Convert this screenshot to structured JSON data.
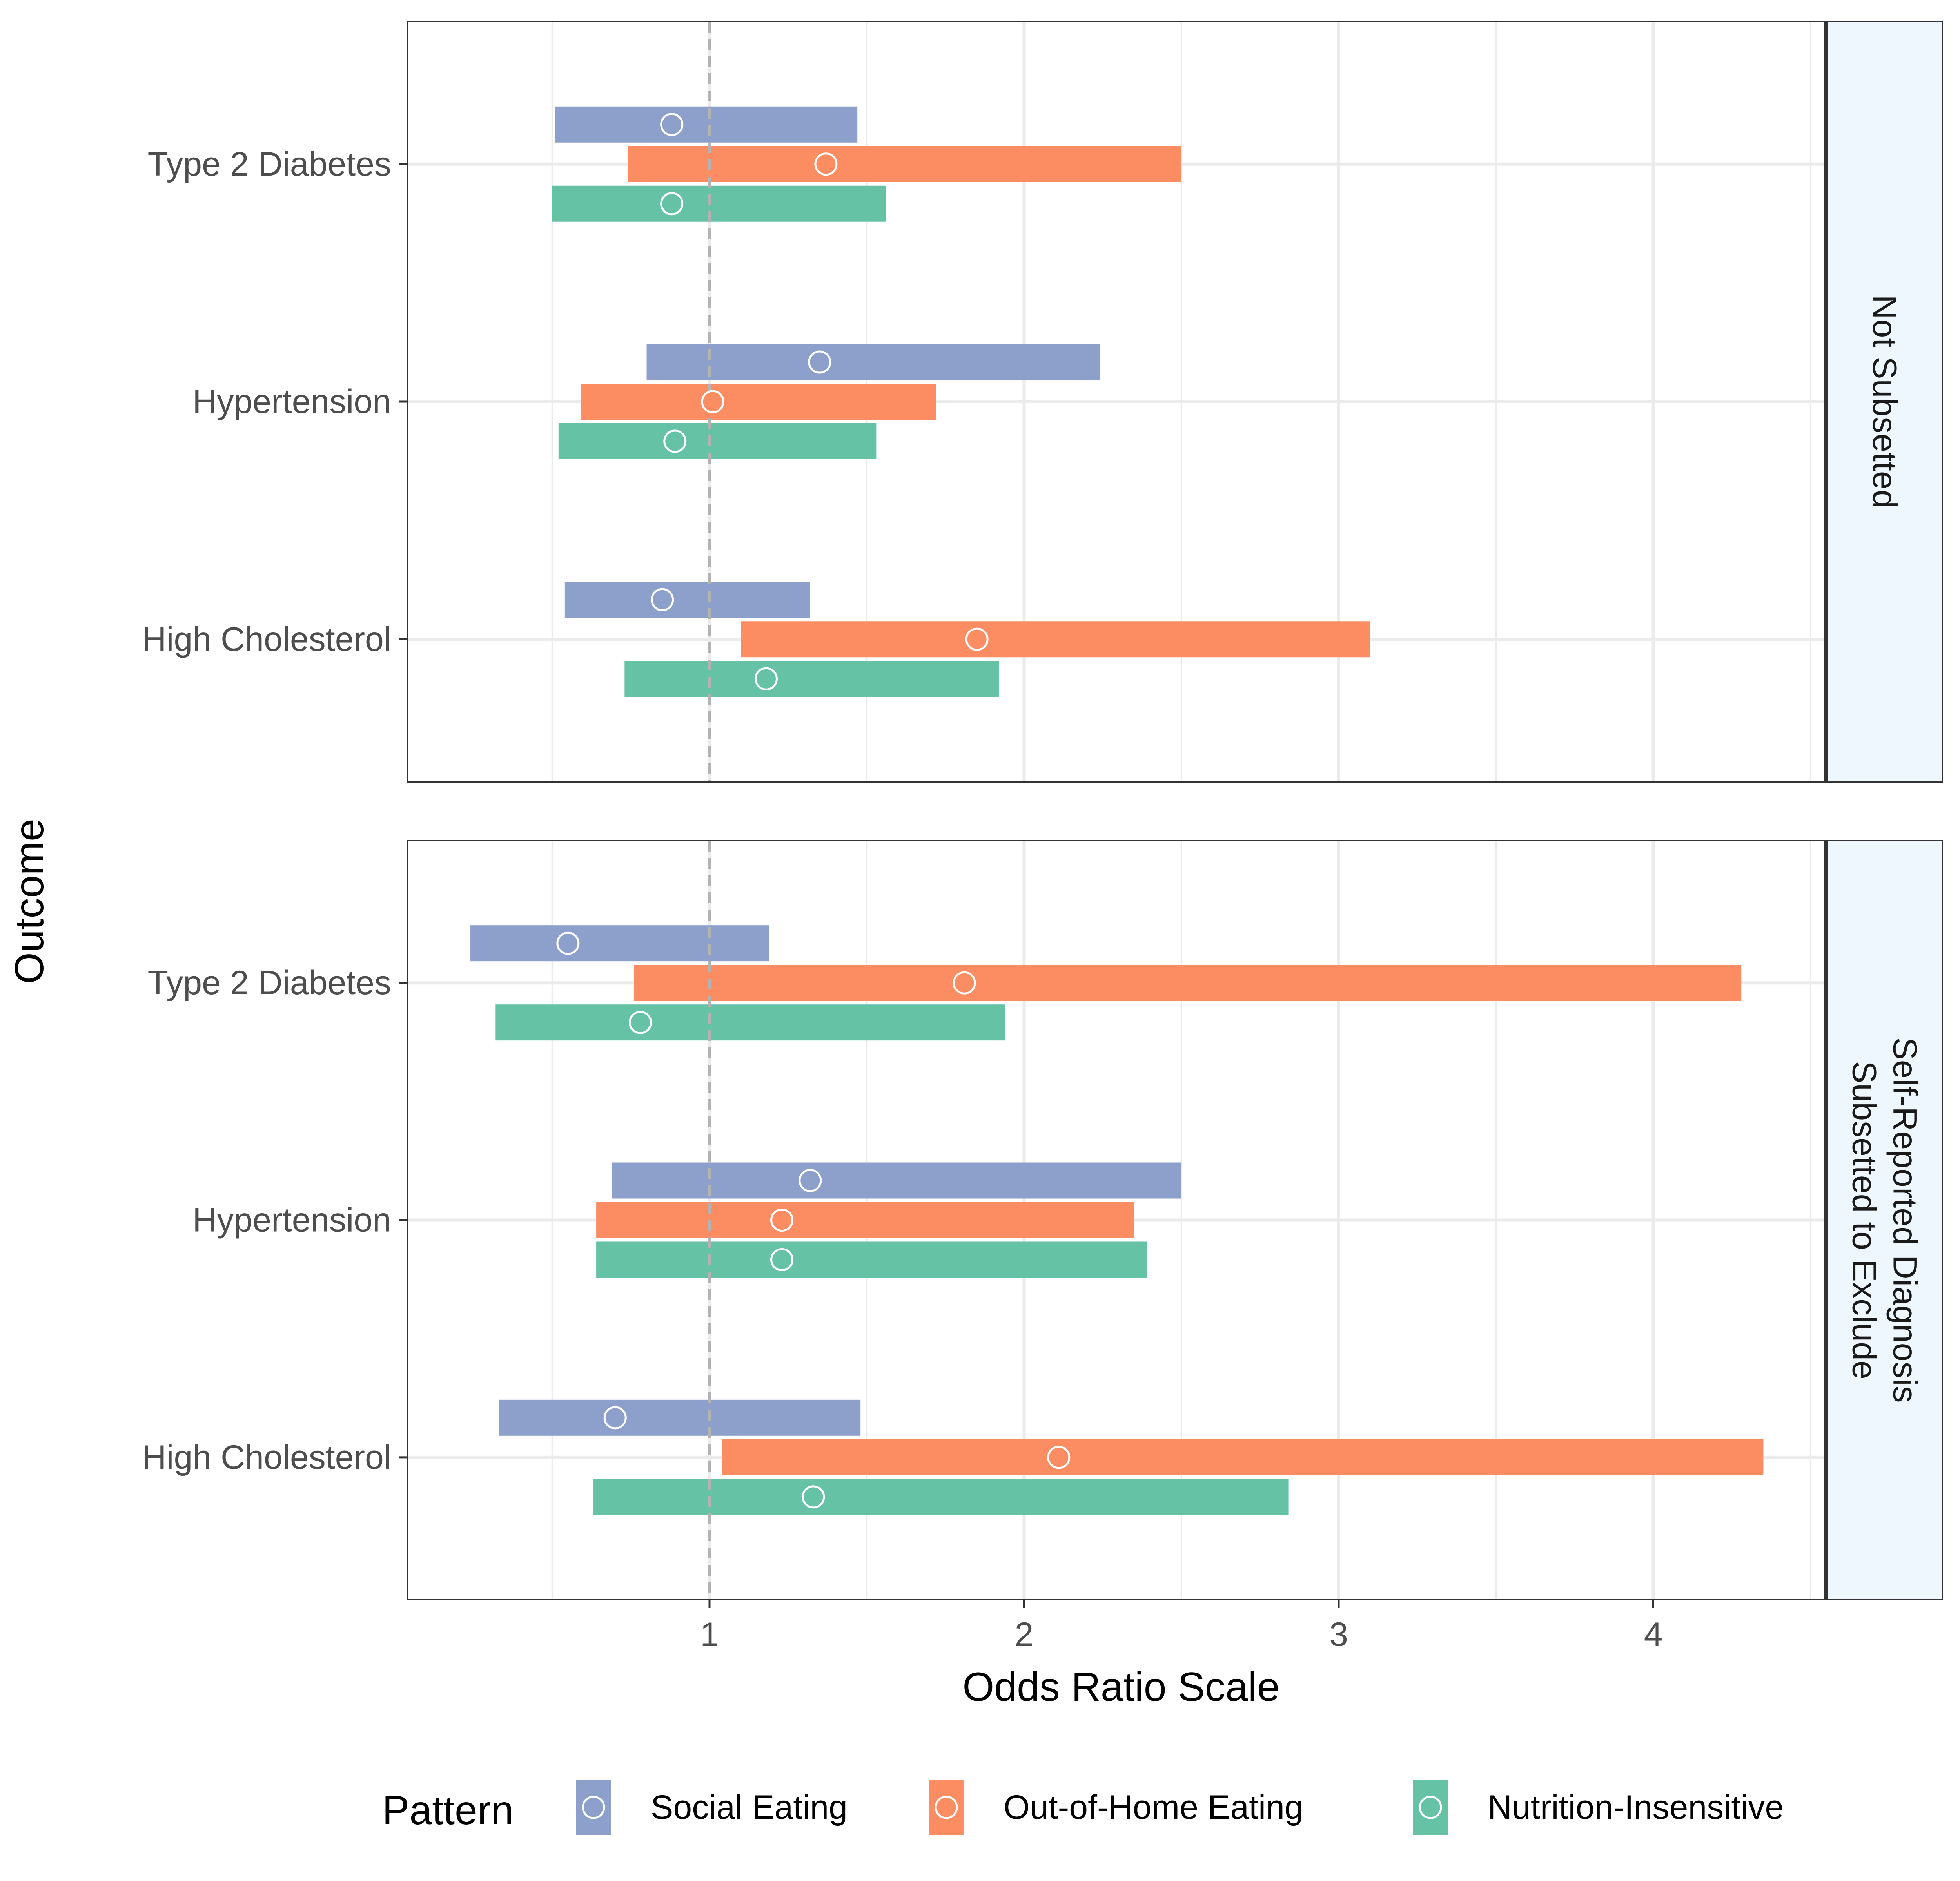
{
  "chart_data": {
    "type": "forest-range",
    "xlabel": "Odds Ratio Scale",
    "ylabel": "Outcome",
    "x_ticks": [
      1,
      2,
      3,
      4
    ],
    "xlim": [
      0.0,
      4.92
    ],
    "reference_line": 1,
    "grid": true,
    "legend_position": "bottom",
    "legend": {
      "title": "Pattern",
      "entries": [
        "Social Eating",
        "Out-of-Home Eating",
        "Nutrition-Insensitive"
      ]
    },
    "series_colors": {
      "Social Eating": "#8DA0CB",
      "Out-of-Home Eating": "#FC8D62",
      "Nutrition-Insensitive": "#66C2A5"
    },
    "categories": [
      "Type 2 Diabetes",
      "Hypertension",
      "High Cholesterol"
    ],
    "panels": [
      {
        "label": [
          "Not Subsetted"
        ],
        "series": [
          {
            "name": "Social Eating",
            "estimate": [
              0.88,
              1.35,
              0.85
            ],
            "lower": [
              0.51,
              0.8,
              0.54
            ],
            "upper": [
              1.47,
              2.24,
              1.32
            ]
          },
          {
            "name": "Out-of-Home Eating",
            "estimate": [
              1.37,
              1.01,
              1.85
            ],
            "lower": [
              0.74,
              0.59,
              1.1
            ],
            "upper": [
              2.5,
              1.72,
              3.1
            ]
          },
          {
            "name": "Nutrition-Insensitive",
            "estimate": [
              0.88,
              0.89,
              1.18
            ],
            "lower": [
              0.5,
              0.52,
              0.73
            ],
            "upper": [
              1.56,
              1.53,
              1.92
            ]
          }
        ]
      },
      {
        "label": [
          "Subsetted to Exclude",
          "Self-Reported Diagnosis"
        ],
        "series": [
          {
            "name": "Social Eating",
            "estimate": [
              0.55,
              1.32,
              0.7
            ],
            "lower": [
              0.24,
              0.69,
              0.33
            ],
            "upper": [
              1.19,
              2.5,
              1.48
            ]
          },
          {
            "name": "Out-of-Home Eating",
            "estimate": [
              1.81,
              1.23,
              2.11
            ],
            "lower": [
              0.76,
              0.64,
              1.04
            ],
            "upper": [
              4.28,
              2.35,
              4.35
            ]
          },
          {
            "name": "Nutrition-Insensitive",
            "estimate": [
              0.78,
              1.23,
              1.33
            ],
            "lower": [
              0.32,
              0.64,
              0.63
            ],
            "upper": [
              1.94,
              2.39,
              2.84
            ]
          }
        ]
      }
    ]
  }
}
